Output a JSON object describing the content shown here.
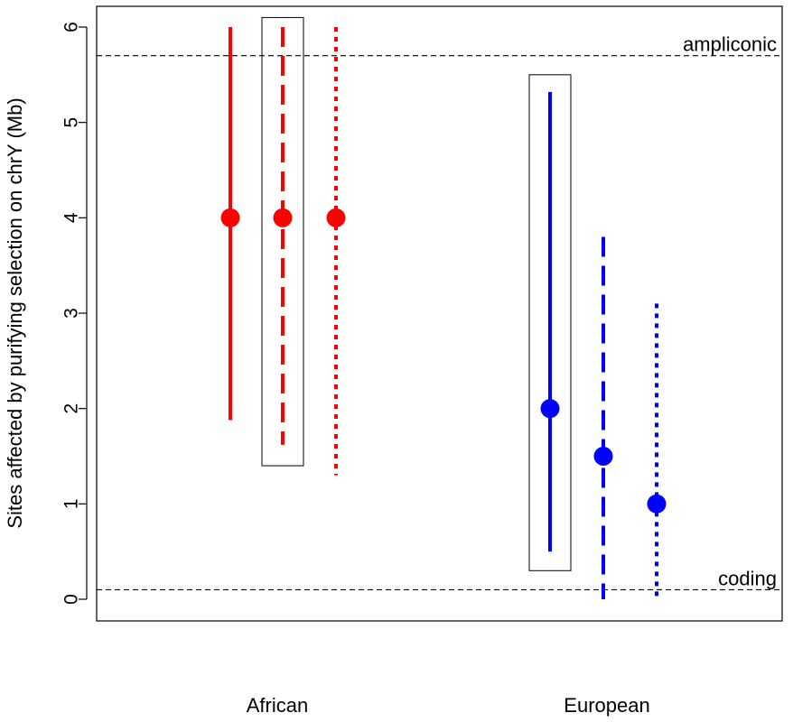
{
  "chart_data": {
    "type": "scatter",
    "title": "",
    "ylabel": "Sites affected by purifying selection on chrY (Mb)",
    "xlabel": "",
    "ylim": [
      -0.25,
      6.2
    ],
    "yticks": [
      0,
      1,
      2,
      3,
      4,
      5,
      6
    ],
    "grid": false,
    "groups": [
      {
        "label": "African",
        "color": "#ff0000"
      },
      {
        "label": "European",
        "color": "#0000ff"
      }
    ],
    "series": [
      {
        "group": "African",
        "line_style": "solid",
        "estimate": 4.0,
        "lower": 1.88,
        "upper": 6.0,
        "boxed": false
      },
      {
        "group": "African",
        "line_style": "dashed",
        "estimate": 4.0,
        "lower": 1.62,
        "upper": 6.0,
        "boxed": true,
        "box_lower": 1.4,
        "box_upper": 6.1
      },
      {
        "group": "African",
        "line_style": "dotted",
        "estimate": 4.0,
        "lower": 1.3,
        "upper": 6.0,
        "boxed": false
      },
      {
        "group": "European",
        "line_style": "solid",
        "estimate": 2.0,
        "lower": 0.5,
        "upper": 5.32,
        "boxed": true,
        "box_lower": 0.3,
        "box_upper": 5.5
      },
      {
        "group": "European",
        "line_style": "dashed",
        "estimate": 1.5,
        "lower": 0.0,
        "upper": 3.8,
        "boxed": false
      },
      {
        "group": "European",
        "line_style": "dotted",
        "estimate": 1.0,
        "lower": 0.0,
        "upper": 3.1,
        "boxed": false
      }
    ],
    "reference_lines": [
      {
        "label": "ampliconic",
        "y": 5.7
      },
      {
        "label": "coding",
        "y": 0.1
      }
    ]
  }
}
